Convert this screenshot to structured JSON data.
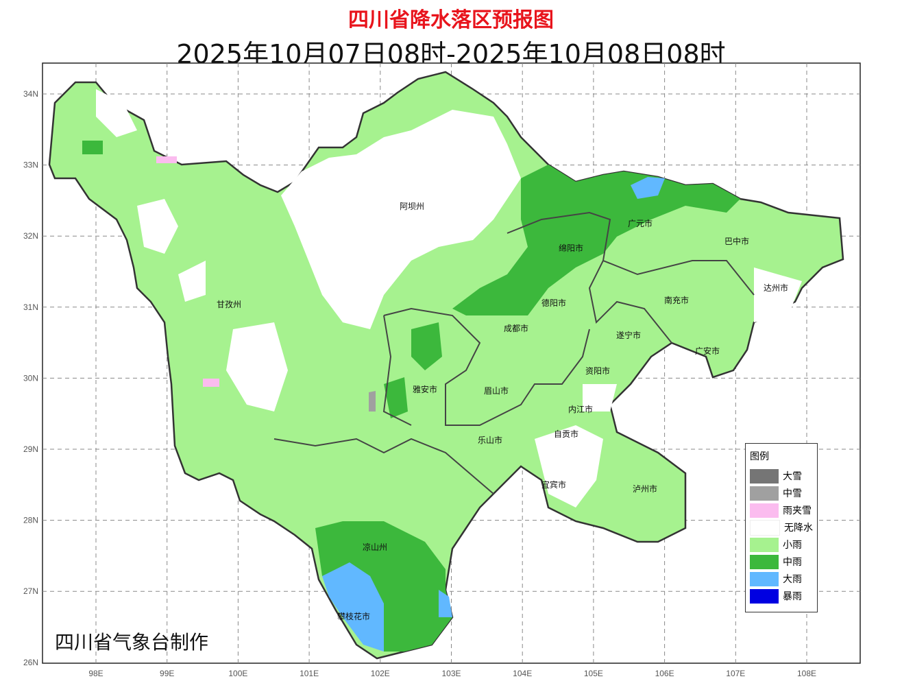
{
  "title": "四川省降水落区预报图",
  "subtitle": "2025年10月07日08时-2025年10月08日08时",
  "producer": "四川省气象台制作",
  "axes": {
    "x_ticks": [
      "98E",
      "99E",
      "100E",
      "101E",
      "102E",
      "103E",
      "104E",
      "105E",
      "106E",
      "107E",
      "108E"
    ],
    "y_ticks": [
      "34N",
      "33N",
      "32N",
      "31N",
      "30N",
      "29N",
      "28N",
      "27N",
      "26N"
    ]
  },
  "legend": {
    "title": "图例",
    "items": [
      {
        "label": "大雪",
        "color": "#757575"
      },
      {
        "label": "中雪",
        "color": "#a0a0a0"
      },
      {
        "label": "雨夹雪",
        "color": "#fbbcef"
      },
      {
        "label": "无降水",
        "color": "#ffffff"
      },
      {
        "label": "小雨",
        "color": "#a6f28f"
      },
      {
        "label": "中雨",
        "color": "#3cb83c"
      },
      {
        "label": "大雨",
        "color": "#61b8ff"
      },
      {
        "label": "暴雨",
        "color": "#0000e1"
      }
    ]
  },
  "regions": [
    "阿坝州",
    "甘孜州",
    "绵阳市",
    "广元市",
    "巴中市",
    "达州市",
    "南充市",
    "德阳市",
    "成都市",
    "遂宁市",
    "广安市",
    "资阳市",
    "雅安市",
    "眉山市",
    "内江市",
    "自贡市",
    "乐山市",
    "宜宾市",
    "泸州市",
    "凉山州",
    "攀枝花市"
  ]
}
